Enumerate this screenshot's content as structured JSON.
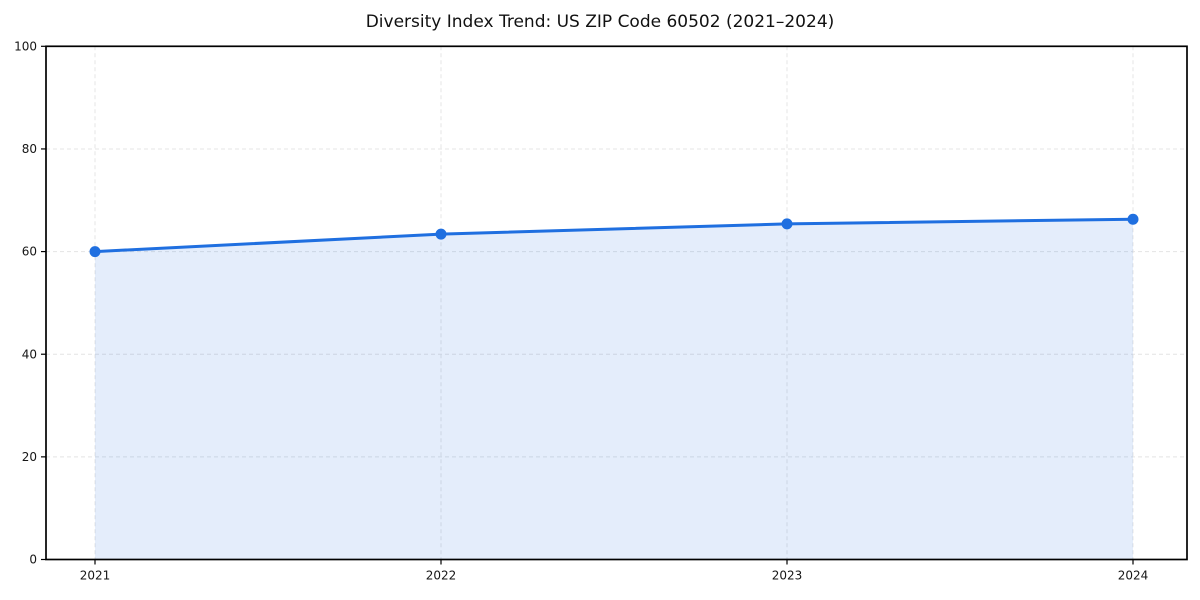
{
  "chart_data": {
    "type": "area",
    "title": "Diversity Index Trend: US ZIP Code 60502 (2021–2024)",
    "categories": [
      "2021",
      "2022",
      "2023",
      "2024"
    ],
    "series": [
      {
        "name": "Diversity Index",
        "values": [
          60.0,
          63.4,
          65.4,
          66.3
        ]
      }
    ],
    "xlabel": "",
    "ylabel": "",
    "ylim": [
      0,
      100
    ],
    "yticks": [
      0,
      20,
      40,
      60,
      80,
      100
    ],
    "grid": true,
    "grid_style": "dashed",
    "legend_position": "none",
    "colors": {
      "line": "#1f6fe0",
      "marker": "#1f6fe0",
      "fill": "rgba(31,111,224,0.12)",
      "grid": "#e4e4e4",
      "frame": "#000000",
      "tick_label": "#161616",
      "background": "#ffffff"
    }
  }
}
